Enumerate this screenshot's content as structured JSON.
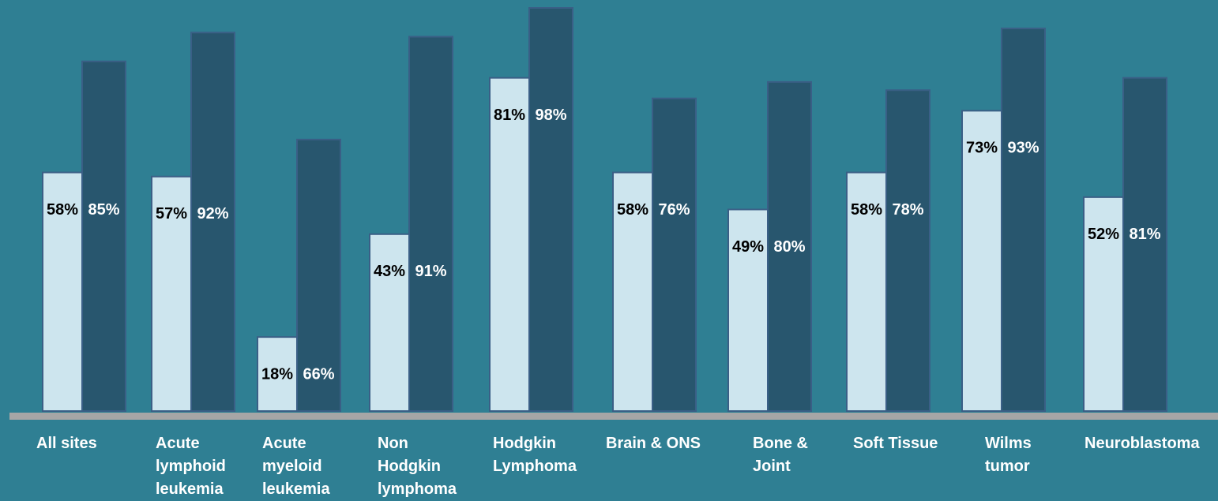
{
  "chart_data": {
    "type": "bar",
    "categories": [
      "All sites",
      "Acute lymphoid leukemia",
      "Acute myeloid leukemia",
      "Non Hodgkin lymphoma",
      "Hodgkin Lymphoma",
      "Brain & ONS",
      "Bone & Joint",
      "Soft Tissue",
      "Wilms tumor",
      "Neuroblastoma"
    ],
    "series": [
      {
        "color": "#cde5ee",
        "values": [
          58,
          57,
          18,
          43,
          81,
          58,
          49,
          58,
          73,
          52
        ],
        "value_labels": [
          "58%",
          "57%",
          "18%",
          "43%",
          "81%",
          "58%",
          "49%",
          "58%",
          "73%",
          "52%"
        ]
      },
      {
        "color": "#28566e",
        "values": [
          85,
          92,
          66,
          91,
          98,
          76,
          80,
          78,
          93,
          81
        ],
        "value_labels": [
          "85%",
          "92%",
          "66%",
          "91%",
          "98%",
          "76%",
          "80%",
          "78%",
          "93%",
          "81%"
        ]
      }
    ]
  }
}
